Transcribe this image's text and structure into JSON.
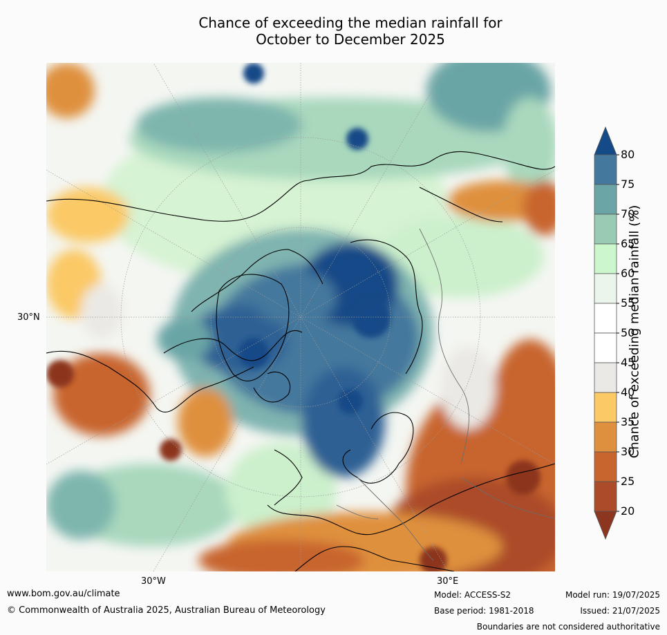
{
  "title_line1": "Chance of exceeding the median rainfall for",
  "title_line2": "October to December 2025",
  "map_labels": {
    "lat": "30°N",
    "lon_w": "30°W",
    "lon_e": "30°E"
  },
  "colorbar": {
    "title": "Chance of exceeding median rainfall (%)",
    "ticks": [
      "80",
      "75",
      "70",
      "65",
      "60",
      "55",
      "50",
      "45",
      "40",
      "35",
      "30",
      "25",
      "20"
    ],
    "colors": {
      "above80": "#134a87",
      "c75_80": "#45789d",
      "c70_75": "#6ba5a6",
      "c65_70": "#98cab4",
      "c60_65": "#ccf7cc",
      "c55_60": "#ecf5ec",
      "c50_55": "#ffffff",
      "c45_50": "#ffffff",
      "c40_45": "#ebe9e5",
      "c35_40": "#fbc966",
      "c30_35": "#df903e",
      "c25_30": "#c8652e",
      "c20_25": "#ab4b29",
      "below20": "#8c351f"
    }
  },
  "footer": {
    "website": "www.bom.gov.au/climate",
    "copyright": "© Commonwealth of Australia 2025, Australian Bureau of Meteorology",
    "model": "Model: ACCESS-S2",
    "base_period": "Base period: 1981-2018",
    "model_run": "Model run: 19/07/2025",
    "issued": "Issued: 21/07/2025",
    "disclaimer": "Boundaries are not considered authoritative"
  }
}
